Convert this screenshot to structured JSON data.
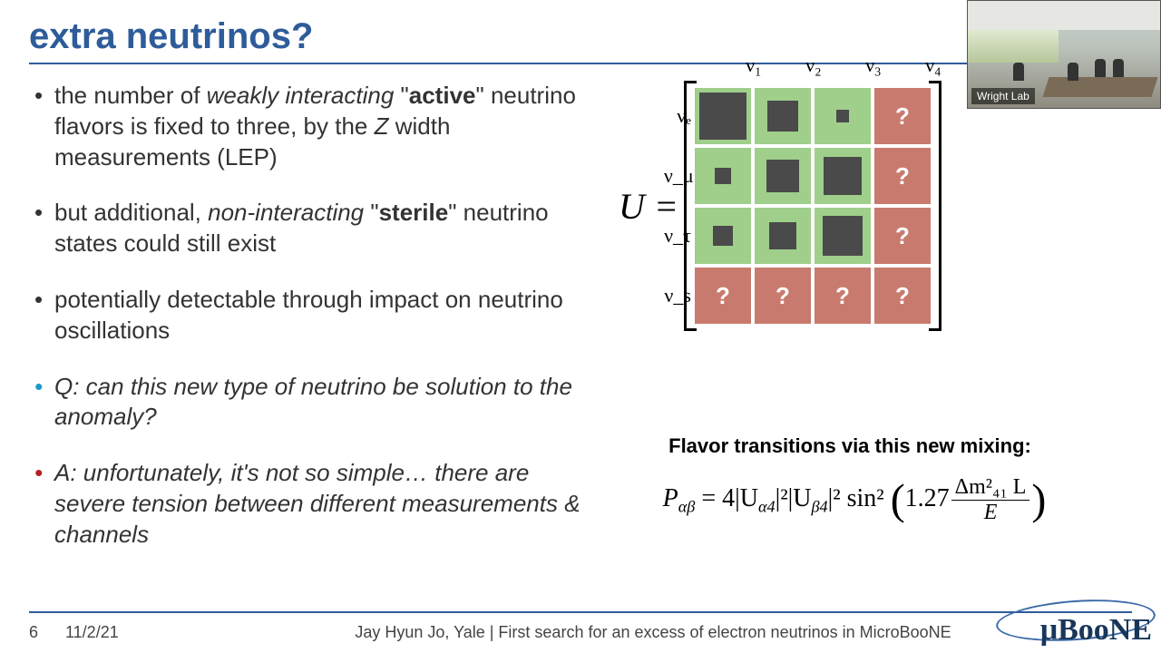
{
  "title": "extra neutrinos?",
  "bullets": {
    "b1_pre": "the number of ",
    "b1_em": "weakly interacting",
    "b1_mid": " \"",
    "b1_bold": "active",
    "b1_post": "\" neutrino flavors is fixed to three, by the ",
    "b1_z": "Z",
    "b1_end": " width measurements (LEP)",
    "b2_pre": "but additional, ",
    "b2_em": "non-interacting",
    "b2_mid": " \"",
    "b2_bold": "sterile",
    "b2_post": "\" neutrino states could still exist",
    "b3": "potentially detectable through impact on neutrino oscillations",
    "q": "Q: can this new type of neutrino be solution to the anomaly?",
    "a": "A: unfortunately, it's not so simple… there are severe tension between different measurements & channels"
  },
  "matrix": {
    "U_label": "U =",
    "col_labels": [
      "ν₁",
      "ν₂",
      "ν₃",
      "ν₄"
    ],
    "row_labels": [
      "νₑ",
      "ν_μ",
      "ν_τ",
      "ν_s"
    ],
    "green_bg": "#9fcf8a",
    "red_bg": "#c97a6e",
    "block_color": "#4a4a4a",
    "qmark": "?",
    "cells": [
      [
        {
          "t": "g",
          "s": 52
        },
        {
          "t": "g",
          "s": 34
        },
        {
          "t": "g",
          "s": 14
        },
        {
          "t": "r"
        }
      ],
      [
        {
          "t": "g",
          "s": 18
        },
        {
          "t": "g",
          "s": 36
        },
        {
          "t": "g",
          "s": 42
        },
        {
          "t": "r"
        }
      ],
      [
        {
          "t": "g",
          "s": 22
        },
        {
          "t": "g",
          "s": 30
        },
        {
          "t": "g",
          "s": 44
        },
        {
          "t": "r"
        }
      ],
      [
        {
          "t": "r"
        },
        {
          "t": "r"
        },
        {
          "t": "r"
        },
        {
          "t": "r"
        }
      ]
    ]
  },
  "flavor_caption": "Flavor transitions via this new mixing:",
  "formula": {
    "lhs": "P",
    "ab": "αβ",
    "eq": " = 4|U",
    "a4": "α4",
    "sq": "|²|U",
    "b4": "β4",
    "sq2": "|² sin²",
    "coef": "1.27",
    "num": "Δm²₄₁ L",
    "den": "E"
  },
  "footer": {
    "page": "6",
    "date": "11/2/21",
    "center": "Jay Hyun Jo, Yale | First search for an excess of electron neutrinos in MicroBooNE"
  },
  "logo": "μBooNE",
  "webcam_label": "Wright Lab",
  "colors": {
    "title": "#2e5c9a",
    "q": "#1a9bc7",
    "a": "#b22222"
  }
}
